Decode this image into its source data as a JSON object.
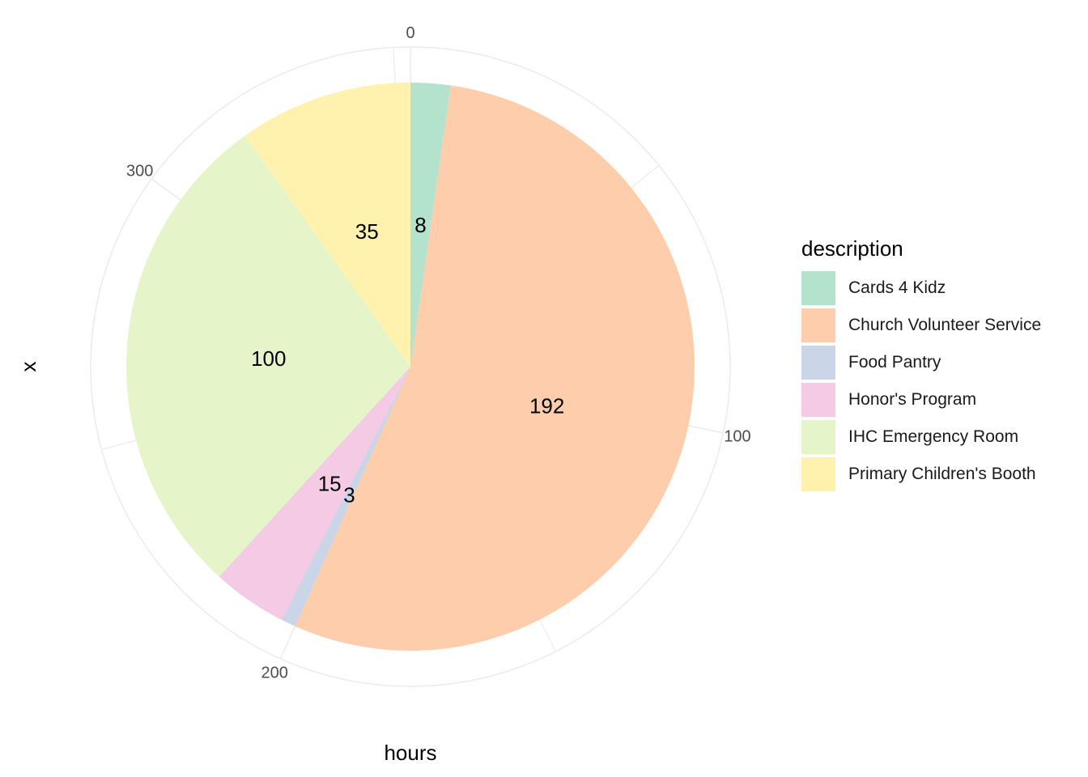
{
  "chart_data": {
    "type": "pie",
    "title": "",
    "xlabel": "hours",
    "ylabel": "x",
    "legend_title": "description",
    "legend_position": "right",
    "radial_ticks": [
      0,
      100,
      200,
      300
    ],
    "slices": [
      {
        "label": "Cards 4 Kidz",
        "value": 8,
        "color": "#B3E2CD"
      },
      {
        "label": "Church Volunteer Service",
        "value": 192,
        "color": "#FDCDAC"
      },
      {
        "label": "Food Pantry",
        "value": 3,
        "color": "#CBD5E8"
      },
      {
        "label": "Honor's Program",
        "value": 15,
        "color": "#F4CAE4"
      },
      {
        "label": "IHC Emergency Room",
        "value": 100,
        "color": "#E6F5C9"
      },
      {
        "label": "Primary Children's Booth",
        "value": 35,
        "color": "#FFF2AE"
      }
    ]
  }
}
